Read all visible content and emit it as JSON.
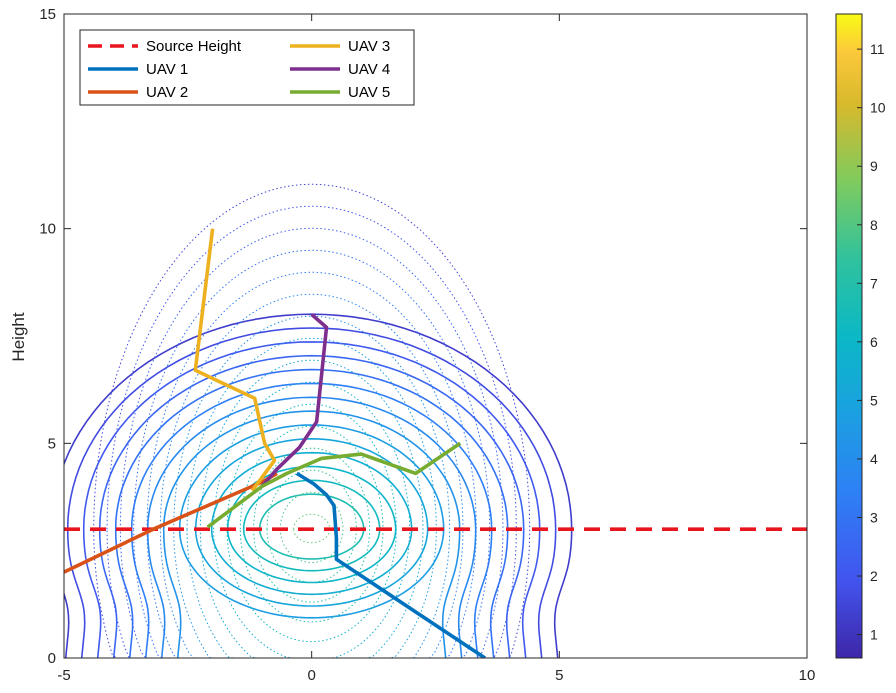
{
  "chart_data": {
    "type": "line",
    "ylabel": "Height",
    "xlabel": "",
    "xlim": [
      -5,
      10
    ],
    "ylim": [
      0,
      15
    ],
    "xticks": [
      "-5",
      "0",
      "5",
      "10"
    ],
    "yticks": [
      "0",
      "5",
      "10",
      "15"
    ],
    "source_height": 3,
    "colorbar": {
      "range": [
        0.6,
        11.6
      ],
      "ticks": [
        "1",
        "2",
        "3",
        "4",
        "5",
        "6",
        "7",
        "8",
        "9",
        "10",
        "11"
      ],
      "colormap": "parula"
    },
    "series": [
      {
        "name": "Source Height",
        "color": "#e8141e",
        "style": "dashed",
        "x": [
          -5,
          10
        ],
        "y": [
          3,
          3
        ]
      },
      {
        "name": "UAV 1",
        "color": "#0072bd",
        "x": [
          -0.3,
          0.05,
          0.3,
          0.45,
          0.5,
          0.5,
          3.5
        ],
        "y": [
          4.3,
          4.05,
          3.8,
          3.55,
          2.8,
          2.3,
          0
        ]
      },
      {
        "name": "UAV 2",
        "color": "#d95319",
        "x": [
          -5,
          -3.2,
          -1.4,
          -1.0,
          -0.7
        ],
        "y": [
          2.0,
          3.0,
          3.9,
          4.1,
          4.3
        ]
      },
      {
        "name": "UAV 3",
        "color": "#edb120",
        "x": [
          -2.0,
          -2.35,
          -1.15,
          -0.95,
          -0.75,
          -1.2
        ],
        "y": [
          10.0,
          6.7,
          6.05,
          5.0,
          4.6,
          3.9
        ]
      },
      {
        "name": "UAV 4",
        "color": "#7e2f8e",
        "x": [
          0.0,
          0.3,
          0.2,
          0.1,
          -0.25,
          -0.7,
          -1.0
        ],
        "y": [
          8.0,
          7.7,
          6.6,
          5.5,
          4.9,
          4.4,
          4.0
        ]
      },
      {
        "name": "UAV 5",
        "color": "#77ac30",
        "x": [
          -2.1,
          -1.0,
          -0.5,
          0.2,
          1.0,
          2.1,
          3.0
        ],
        "y": [
          3.05,
          4.0,
          4.3,
          4.65,
          4.75,
          4.3,
          5.0
        ]
      }
    ],
    "contours": {
      "center": [
        0,
        3
      ],
      "solid_levels": 14,
      "dotted_levels": 16
    },
    "legend": {
      "position": "top-left",
      "columns": 2
    }
  }
}
